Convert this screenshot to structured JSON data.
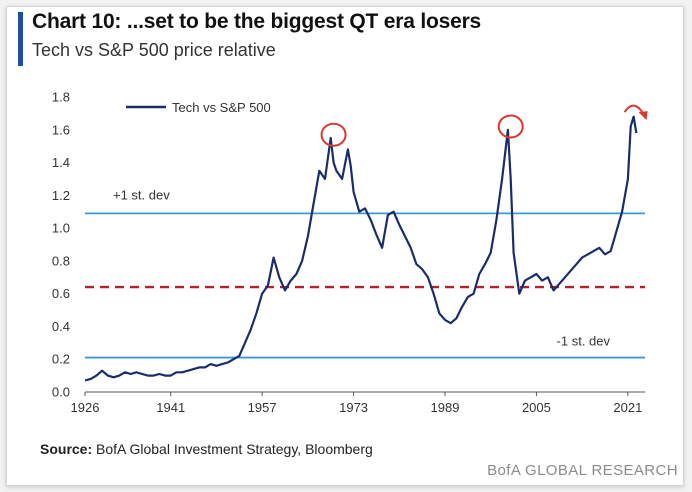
{
  "title": "Chart 10: ...set to be the biggest QT era losers",
  "subtitle": "Tech vs S&P 500 price relative",
  "source_label": "Source:",
  "source_text": "BofA Global Investment Strategy, Bloomberg",
  "brand": "BofA GLOBAL RESEARCH",
  "colors": {
    "series": "#1a2d6b",
    "stdev_lines": "#3a9ad9",
    "mean_line": "#b5222b",
    "highlight_circles": "#d9382e",
    "accent": "#1f4e9e"
  },
  "chart_data": {
    "type": "line",
    "title": "Chart 10: ...set to be the biggest QT era losers",
    "subtitle": "Tech vs S&P 500 price relative",
    "xlabel": "",
    "ylabel": "",
    "xlim": [
      1926,
      2024
    ],
    "ylim": [
      0,
      1.8
    ],
    "x_ticks": [
      1926,
      1941,
      1957,
      1973,
      1989,
      2005,
      2021
    ],
    "y_ticks": [
      0.0,
      0.2,
      0.4,
      0.6,
      0.8,
      1.0,
      1.2,
      1.4,
      1.6,
      1.8
    ],
    "grid": false,
    "legend_position": "top-left",
    "series": [
      {
        "name": "Tech vs  S&P 500",
        "x": [
          1926,
          1927,
          1928,
          1929,
          1930,
          1931,
          1932,
          1933,
          1934,
          1935,
          1936,
          1937,
          1938,
          1939,
          1940,
          1941,
          1942,
          1943,
          1944,
          1945,
          1946,
          1947,
          1948,
          1949,
          1950,
          1951,
          1952,
          1953,
          1954,
          1955,
          1956,
          1957,
          1958,
          1959,
          1960,
          1961,
          1962,
          1963,
          1964,
          1965,
          1966,
          1967,
          1968,
          1969,
          1969.5,
          1970,
          1971,
          1972,
          1972.5,
          1973,
          1974,
          1975,
          1976,
          1977,
          1978,
          1979,
          1980,
          1981,
          1982,
          1983,
          1984,
          1985,
          1986,
          1987,
          1988,
          1989,
          1990,
          1991,
          1992,
          1993,
          1994,
          1995,
          1996,
          1997,
          1998,
          1999,
          2000,
          2000.5,
          2001,
          2002,
          2003,
          2004,
          2005,
          2006,
          2007,
          2008,
          2009,
          2010,
          2011,
          2012,
          2013,
          2014,
          2015,
          2016,
          2017,
          2018,
          2019,
          2020,
          2021,
          2021.5,
          2022,
          2022.5
        ],
        "values": [
          0.07,
          0.08,
          0.1,
          0.13,
          0.1,
          0.09,
          0.1,
          0.12,
          0.11,
          0.12,
          0.11,
          0.1,
          0.1,
          0.11,
          0.1,
          0.1,
          0.12,
          0.12,
          0.13,
          0.14,
          0.15,
          0.15,
          0.17,
          0.16,
          0.17,
          0.18,
          0.2,
          0.22,
          0.3,
          0.38,
          0.48,
          0.6,
          0.65,
          0.82,
          0.7,
          0.62,
          0.68,
          0.72,
          0.8,
          0.95,
          1.15,
          1.35,
          1.3,
          1.55,
          1.4,
          1.35,
          1.3,
          1.48,
          1.38,
          1.22,
          1.1,
          1.12,
          1.05,
          0.96,
          0.88,
          1.08,
          1.1,
          1.02,
          0.95,
          0.88,
          0.78,
          0.75,
          0.7,
          0.6,
          0.48,
          0.44,
          0.42,
          0.45,
          0.52,
          0.58,
          0.6,
          0.72,
          0.78,
          0.85,
          1.05,
          1.3,
          1.6,
          1.3,
          0.85,
          0.6,
          0.68,
          0.7,
          0.72,
          0.68,
          0.7,
          0.62,
          0.66,
          0.7,
          0.74,
          0.78,
          0.82,
          0.84,
          0.86,
          0.88,
          0.84,
          0.86,
          0.98,
          1.1,
          1.3,
          1.62,
          1.68,
          1.58
        ]
      }
    ],
    "reference_lines": [
      {
        "label": "+1 st. dev",
        "y": 1.09,
        "style": "solid",
        "color": "#3a9ad9"
      },
      {
        "label": "",
        "y": 0.64,
        "style": "dashed",
        "color": "#b5222b"
      },
      {
        "label": "-1 st. dev",
        "y": 0.21,
        "style": "solid",
        "color": "#3a9ad9"
      }
    ],
    "highlights": [
      {
        "x": 1969.5,
        "y": 1.57
      },
      {
        "x": 2000.5,
        "y": 1.62
      }
    ],
    "arrow_at": {
      "x": 2022,
      "y": 1.72
    }
  }
}
